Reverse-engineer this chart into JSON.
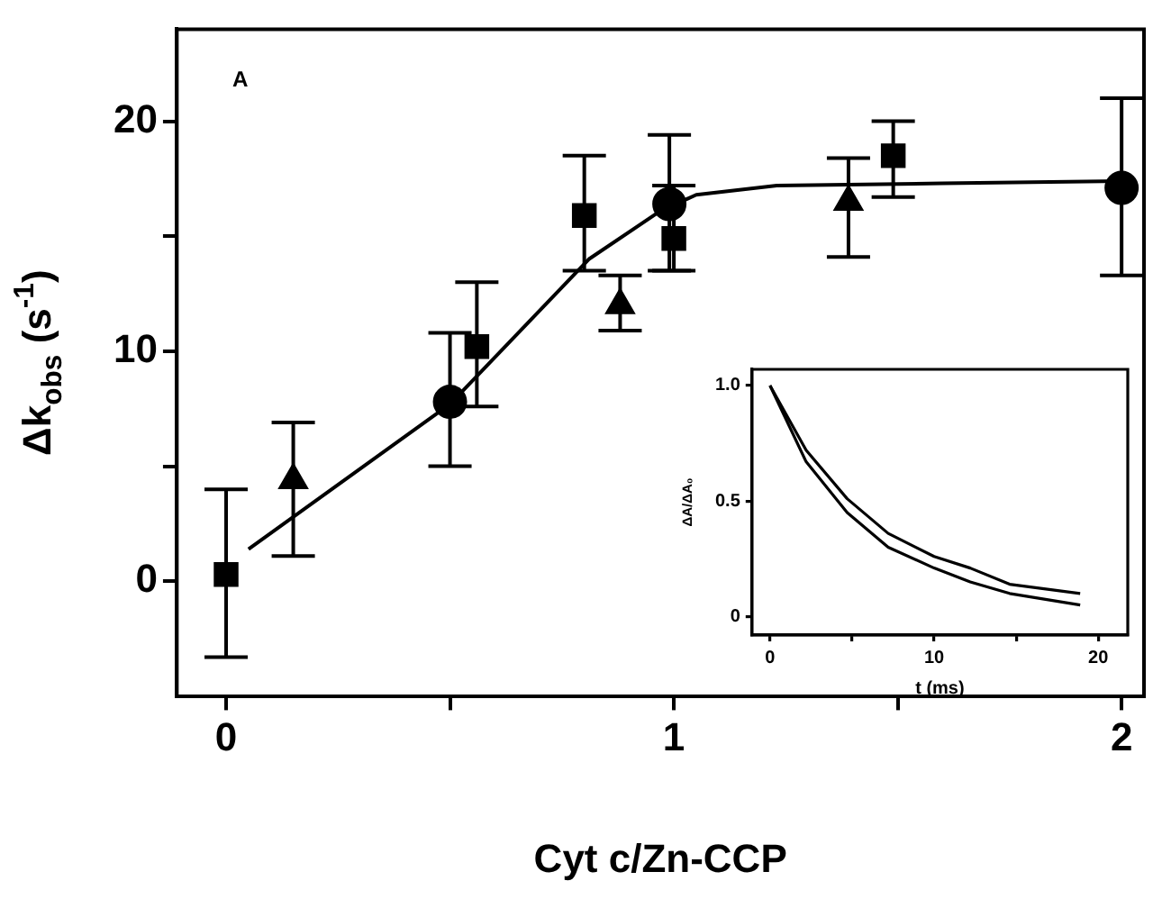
{
  "chart_data": [
    {
      "type": "scatter",
      "xlabel": "Cyt c/Zn-CCP",
      "ylabel": "Δk$_{obs}$ (s$^{-1}$)",
      "annotations": [
        "A"
      ],
      "xlim": [
        -0.11,
        2.05
      ],
      "ylim": [
        -5,
        24
      ],
      "xticks": [
        0,
        {
          "value": 0.5,
          "label": null
        },
        1,
        {
          "value": 1.5,
          "label": null
        },
        2
      ],
      "yticks": [
        0,
        {
          "value": 5,
          "label": null
        },
        10,
        {
          "value": 15,
          "label": null
        },
        20
      ],
      "grid": false,
      "legend": false,
      "series": [
        {
          "type": "line",
          "marker": "none",
          "color": "#000000",
          "x": [
            0.05,
            0.5,
            0.81,
            0.97,
            1.05,
            1.23,
            1.6,
            2.0
          ],
          "values": [
            1.4,
            7.7,
            14.0,
            16.1,
            16.8,
            17.2,
            17.3,
            17.4
          ]
        },
        {
          "type": "scatter",
          "marker": "square",
          "color": "#000000",
          "x": [
            0,
            0.56,
            0.8,
            1.0,
            1.49
          ],
          "values": [
            0.3,
            10.2,
            15.9,
            14.9,
            18.5
          ],
          "errors": [
            [
              -3.3,
              4.0
            ],
            [
              7.6,
              13.0
            ],
            [
              13.5,
              18.5
            ],
            [
              13.5,
              17.2
            ],
            [
              16.7,
              20.0
            ]
          ]
        },
        {
          "type": "scatter",
          "marker": "circle",
          "color": "#000000",
          "x": [
            0.5,
            0.99,
            2.0
          ],
          "values": [
            7.8,
            16.4,
            17.1
          ],
          "errors": [
            [
              5.0,
              10.8
            ],
            [
              13.5,
              19.4
            ],
            [
              13.3,
              21.0
            ]
          ]
        },
        {
          "type": "scatter",
          "marker": "triangle",
          "color": "#000000",
          "x": [
            0.15,
            0.88,
            1.39
          ],
          "values": [
            4.4,
            12.0,
            16.5
          ],
          "errors": [
            [
              1.1,
              6.9
            ],
            [
              10.9,
              13.3
            ],
            [
              14.1,
              18.4
            ]
          ]
        }
      ]
    },
    {
      "type": "line",
      "xlabel": "t (ms)",
      "ylabel": "ΔA/ΔA₀",
      "xlim": [
        -1.1,
        21.8
      ],
      "ylim": [
        -0.08,
        1.07
      ],
      "xticks": [
        0,
        {
          "value": 5,
          "label": null
        },
        10,
        {
          "value": 15,
          "label": null
        },
        20
      ],
      "yticks": [
        0,
        {
          "value": 0.5,
          "label": "0.5"
        },
        {
          "value": 1,
          "label": "1.0"
        }
      ],
      "grid": false,
      "legend": false,
      "marker": "none",
      "line_style": "solid",
      "series": [
        {
          "color": "#000000",
          "x": [
            0,
            2.2,
            4.7,
            7.2,
            10,
            12.2,
            14.6,
            18.9
          ],
          "values": [
            1.0,
            0.72,
            0.51,
            0.36,
            0.26,
            0.21,
            0.14,
            0.1
          ]
        },
        {
          "color": "#000000",
          "x": [
            0,
            2.2,
            4.7,
            7.2,
            10,
            12.2,
            14.6,
            18.9
          ],
          "values": [
            1.0,
            0.67,
            0.45,
            0.3,
            0.21,
            0.15,
            0.1,
            0.05
          ]
        }
      ]
    }
  ]
}
